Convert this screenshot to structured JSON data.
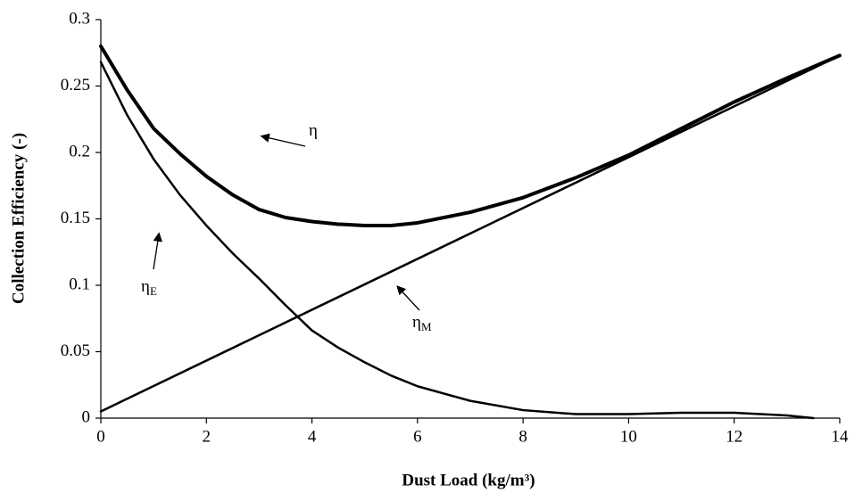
{
  "chart_data": {
    "type": "line",
    "x_label": "Dust Load (kg/m³)",
    "y_label": "Collection Efficiency (-)",
    "xlim": [
      0,
      14
    ],
    "xticks": [
      0,
      2,
      4,
      6,
      8,
      10,
      12,
      14
    ],
    "ylim": [
      0,
      0.3
    ],
    "yticks": [
      0,
      0.05,
      0.1,
      0.15,
      0.2,
      0.25,
      0.3
    ],
    "series": [
      {
        "color": "#000000",
        "width": 4,
        "x": [
          0,
          0.5,
          1,
          1.5,
          2,
          2.5,
          3,
          3.5,
          4,
          4.5,
          5,
          5.5,
          6,
          7,
          8,
          9,
          10,
          11,
          12,
          13,
          14
        ],
        "values": [
          0.28,
          0.247,
          0.218,
          0.199,
          0.182,
          0.168,
          0.157,
          0.151,
          0.148,
          0.146,
          0.145,
          0.145,
          0.147,
          0.155,
          0.166,
          0.181,
          0.198,
          0.218,
          0.238,
          0.256,
          0.273
        ]
      },
      {
        "color": "#000000",
        "width": 2.5,
        "x": [
          0,
          0.5,
          1,
          1.5,
          2,
          2.5,
          3,
          3.5,
          4,
          4.5,
          5,
          5.5,
          6,
          7,
          8,
          9,
          10,
          11,
          12,
          13,
          13.5
        ],
        "values": [
          0.268,
          0.228,
          0.195,
          0.168,
          0.145,
          0.124,
          0.105,
          0.085,
          0.066,
          0.053,
          0.042,
          0.032,
          0.024,
          0.013,
          0.006,
          0.003,
          0.003,
          0.004,
          0.004,
          0.002,
          0
        ]
      },
      {
        "color": "#000000",
        "width": 2.5,
        "x": [
          0,
          14
        ],
        "values": [
          0.005,
          0.273
        ]
      }
    ],
    "annotations": [
      {
        "text": "η"
      },
      {
        "text": "η",
        "subscript": "E"
      },
      {
        "text": "η",
        "subscript": "M"
      }
    ]
  }
}
